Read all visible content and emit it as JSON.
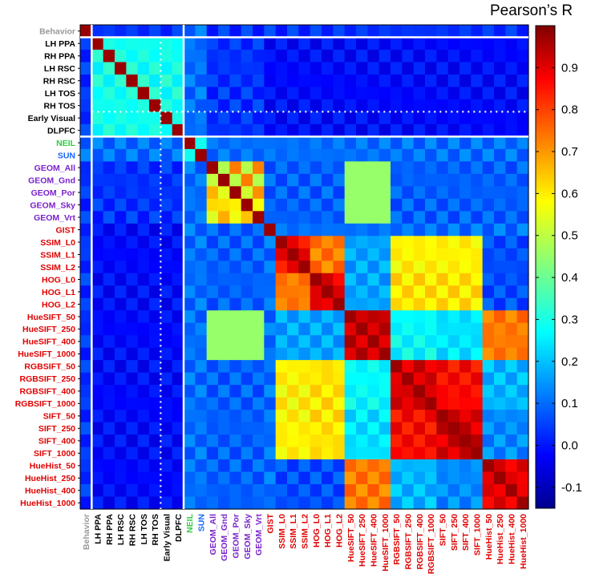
{
  "chart_data": {
    "type": "heatmap",
    "title": "",
    "colorbar_title": "Pearson’s R",
    "colorbar_range": [
      -0.15,
      1.0
    ],
    "colorbar_ticks": [
      {
        "value": 0.9,
        "label": "0.9"
      },
      {
        "value": 0.8,
        "label": "0.8"
      },
      {
        "value": 0.7,
        "label": "0.7"
      },
      {
        "value": 0.6,
        "label": "0.6"
      },
      {
        "value": 0.5,
        "label": "0.5"
      },
      {
        "value": 0.4,
        "label": "0.4"
      },
      {
        "value": 0.3,
        "label": "0.3"
      },
      {
        "value": 0.2,
        "label": "0.2"
      },
      {
        "value": 0.1,
        "label": "0.1"
      },
      {
        "value": 0.0,
        "label": "0.0"
      },
      {
        "value": -0.1,
        "label": "-0.1"
      }
    ],
    "labels": [
      "Behavior",
      "LH PPA",
      "RH PPA",
      "LH RSC",
      "RH RSC",
      "LH TOS",
      "RH TOS",
      "Early Visual",
      "DLPFC",
      "NEIL",
      "SUN",
      "GEOM_All",
      "GEOM_Gnd",
      "GEOM_Por",
      "GEOM_Sky",
      "GEOM_Vrt",
      "GIST",
      "SSIM_L0",
      "SSIM_L1",
      "SSIM_L2",
      "HOG_L0",
      "HOG_L1",
      "HOG_L2",
      "HueSIFT_50",
      "HueSIFT_250",
      "HueSIFT_400",
      "HueSIFT_1000",
      "RGBSIFT_50",
      "RGBSIFT_250",
      "RGBSIFT_400",
      "RGBSIFT_1000",
      "SIFT_50",
      "SIFT_250",
      "SIFT_400",
      "SIFT_1000",
      "HueHist_50",
      "HueHist_250",
      "HueHist_400",
      "HueHist_1000"
    ],
    "label_colors": {
      "behavior": "#999999",
      "brain": "#000000",
      "neil": "#2ecc40",
      "sun": "#1565ff",
      "geom": "#7a22cc",
      "feature": "#e00000"
    },
    "groups": [
      "B",
      "R",
      "R",
      "R",
      "R",
      "R",
      "R",
      "R",
      "R",
      "N",
      "S",
      "G",
      "G",
      "G",
      "G",
      "G",
      "F",
      "F",
      "F",
      "F",
      "F",
      "F",
      "F",
      "F",
      "F",
      "F",
      "F",
      "F",
      "F",
      "F",
      "F",
      "F",
      "F",
      "F",
      "F",
      "F",
      "F",
      "F",
      "F"
    ],
    "separator_rows": [
      1,
      9
    ],
    "dotted_separator_rows": [
      7
    ],
    "matrix_note": "values estimated from colormap"
  }
}
